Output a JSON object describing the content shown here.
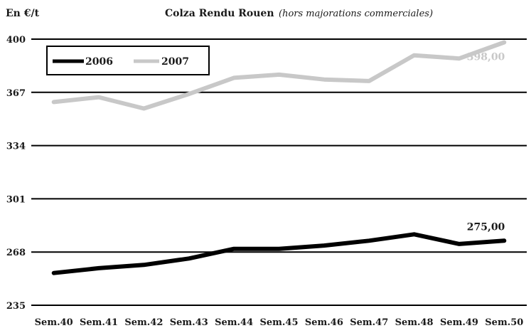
{
  "chart_data": {
    "type": "line",
    "title": "Colza Rendu Rouen",
    "subtitle": "(hors majorations commerciales)",
    "ylabel": "En €/t",
    "xlabel": "",
    "categories": [
      "Sem.40",
      "Sem.41",
      "Sem.42",
      "Sem.43",
      "Sem.44",
      "Sem.45",
      "Sem.46",
      "Sem.47",
      "Sem.48",
      "Sem.49",
      "Sem.50"
    ],
    "yticks": [
      "400",
      "367",
      "334",
      "301",
      "268",
      "235"
    ],
    "ylim": [
      235,
      400
    ],
    "grid": true,
    "legend_position": "top-left",
    "series": [
      {
        "name": "2006",
        "color": "#000000",
        "values": [
          255,
          258,
          260,
          264,
          270,
          270,
          272,
          275,
          279,
          273,
          275
        ],
        "end_label": "275,00"
      },
      {
        "name": "2007",
        "color": "#c8c8c8",
        "values": [
          361,
          364,
          357,
          366,
          376,
          378,
          375,
          374,
          390,
          388,
          398
        ],
        "end_label": "398,00"
      }
    ]
  }
}
